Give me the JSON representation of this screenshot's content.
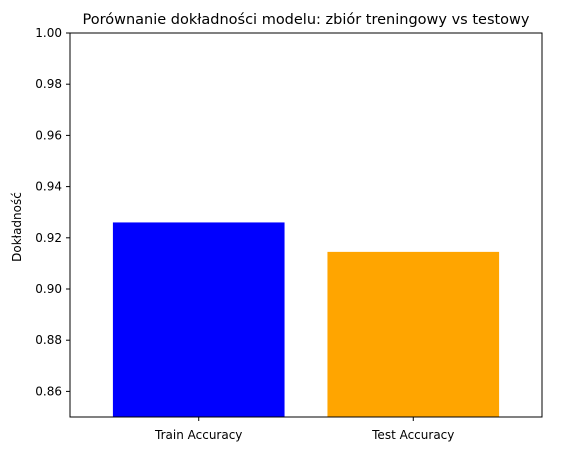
{
  "chart_data": {
    "type": "bar",
    "title": "Porównanie dokładności modelu: zbiór treningowy vs testowy",
    "xlabel": "",
    "ylabel": "Dokładność",
    "categories": [
      "Train Accuracy",
      "Test Accuracy"
    ],
    "values": [
      0.926,
      0.9145
    ],
    "colors": [
      "#0000ff",
      "#ffa500"
    ],
    "ylim": [
      0.85,
      1.0
    ],
    "yticks": [
      "0.86",
      "0.88",
      "0.90",
      "0.92",
      "0.94",
      "0.96",
      "0.98",
      "1.00"
    ],
    "grid": false,
    "legend": false
  }
}
